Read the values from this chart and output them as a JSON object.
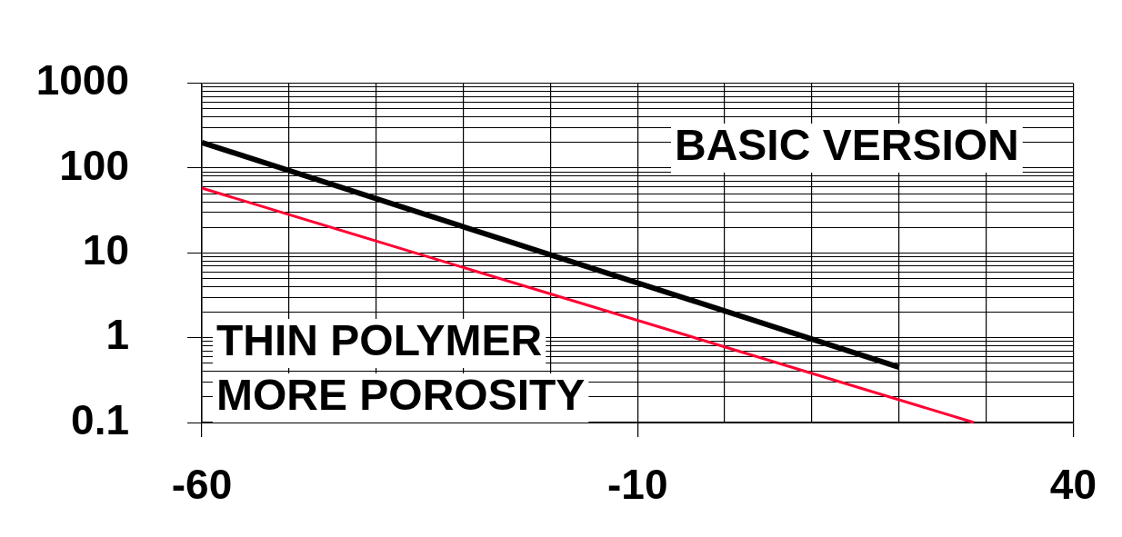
{
  "chart_data": {
    "type": "line",
    "log": "y",
    "grid": true,
    "marker": "none",
    "line_style": "solid",
    "xlim": [
      -60,
      40
    ],
    "xticks": [
      -60,
      {
        "value": -50,
        "label": null
      },
      {
        "value": -40,
        "label": null
      },
      {
        "value": -30,
        "label": null
      },
      {
        "value": -20,
        "label": null
      },
      -10,
      {
        "value": 0,
        "label": null
      },
      {
        "value": 10,
        "label": null
      },
      {
        "value": 20,
        "label": null
      },
      {
        "value": 30,
        "label": null
      },
      40
    ],
    "ylim": [
      0.1,
      1000
    ],
    "yticks": [
      0.1,
      {
        "value": 0.2,
        "label": null
      },
      {
        "value": 0.3,
        "label": null
      },
      {
        "value": 0.4,
        "label": null
      },
      {
        "value": 0.5,
        "label": null
      },
      {
        "value": 0.6,
        "label": null
      },
      {
        "value": 0.7,
        "label": null
      },
      {
        "value": 0.8,
        "label": null
      },
      {
        "value": 0.9,
        "label": null
      },
      1,
      {
        "value": 2,
        "label": null
      },
      {
        "value": 3,
        "label": null
      },
      {
        "value": 4,
        "label": null
      },
      {
        "value": 5,
        "label": null
      },
      {
        "value": 6,
        "label": null
      },
      {
        "value": 7,
        "label": null
      },
      {
        "value": 8,
        "label": null
      },
      {
        "value": 9,
        "label": null
      },
      10,
      {
        "value": 20,
        "label": null
      },
      {
        "value": 30,
        "label": null
      },
      {
        "value": 40,
        "label": null
      },
      {
        "value": 50,
        "label": null
      },
      {
        "value": 60,
        "label": null
      },
      {
        "value": 70,
        "label": null
      },
      {
        "value": 80,
        "label": null
      },
      {
        "value": 90,
        "label": null
      },
      100,
      {
        "value": 200,
        "label": null
      },
      {
        "value": 300,
        "label": null
      },
      {
        "value": 400,
        "label": null
      },
      {
        "value": 500,
        "label": null
      },
      {
        "value": 600,
        "label": null
      },
      {
        "value": 700,
        "label": null
      },
      {
        "value": 800,
        "label": null
      },
      {
        "value": 900,
        "label": null
      },
      1000
    ],
    "series": [
      {
        "color": "#000000",
        "x": [
          -60,
          20
        ],
        "values": [
          200,
          0.45
        ]
      },
      {
        "color": "#ff0033",
        "x": [
          -60,
          28.6
        ],
        "values": [
          58,
          0.1
        ]
      }
    ],
    "annotations": [
      "BASIC VERSION",
      "THIN POLYMER",
      "MORE POROSITY"
    ]
  }
}
